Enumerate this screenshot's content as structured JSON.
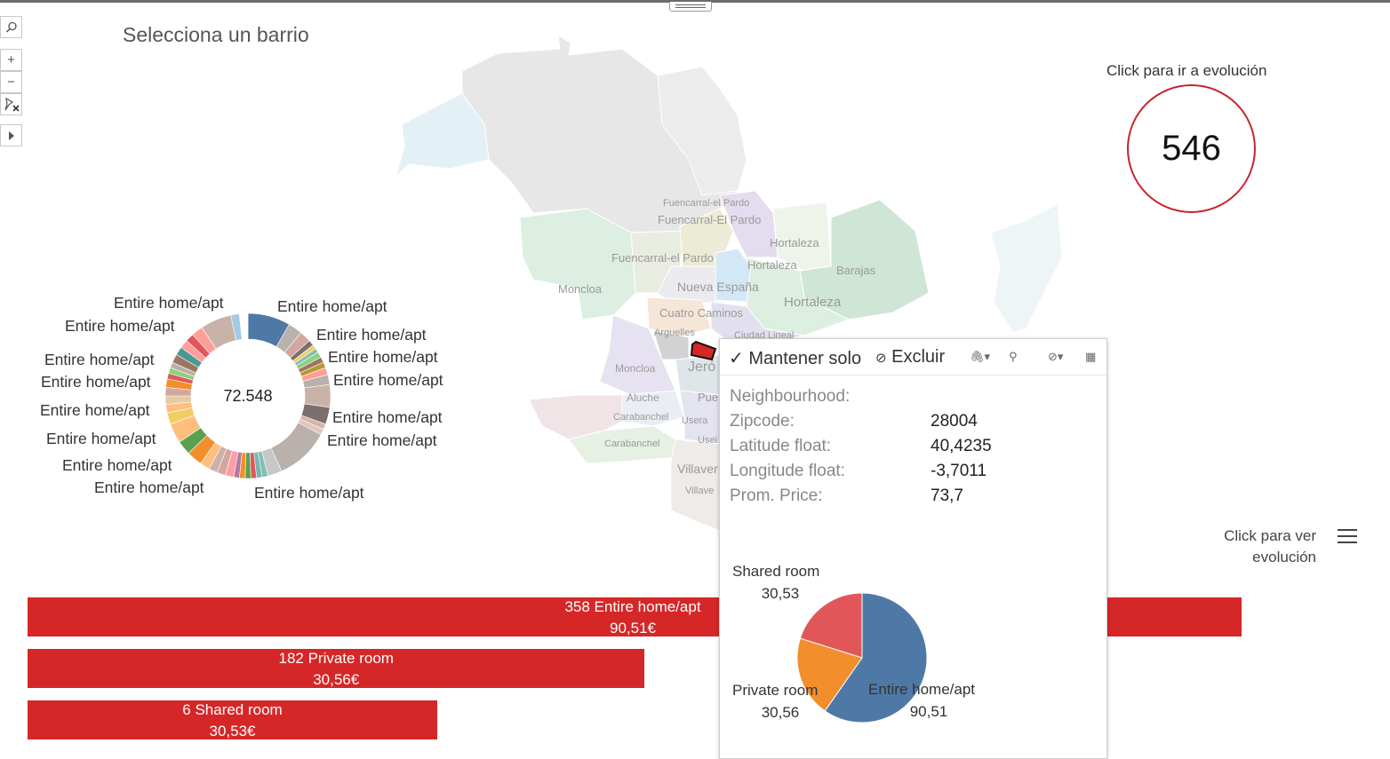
{
  "page": {
    "title": "Selecciona un barrio"
  },
  "toolbar": {
    "search_icon": "search-icon",
    "zoom_in_label": "+",
    "zoom_out_label": "−",
    "reset_icon": "pin-reset-icon",
    "expand_icon": "play-arrow-icon"
  },
  "kpi": {
    "caption": "Click para ir a evolución",
    "value": "546",
    "ring_color": "#c8232c"
  },
  "evolution_link": {
    "line1": "Click para ver",
    "line2": "evolución",
    "icon": "hamburger-menu-icon"
  },
  "map": {
    "labels": [
      "Fuencarral-el Pardo",
      "Fuencarral-El Pardo",
      "Hortaleza",
      "Fuencarral-el Pardo",
      "Hortaleza",
      "Barajas",
      "Moncloa",
      "Nueva España",
      "Hortaleza",
      "Cuatro Caminos",
      "Ciudad Lineal",
      "Arguelles",
      "Moncloa",
      "Jeró",
      "Pue",
      "Aluche",
      "Carabanchel",
      "Usera",
      "Carabanchel",
      "Usei",
      "Villaver",
      "Villave"
    ],
    "selected_color": "#d62728"
  },
  "donut": {
    "center_value": "72.548",
    "labels": [
      "Entire home/apt",
      "Entire home/apt",
      "Entire home/apt",
      "Entire home/apt",
      "Entire home/apt",
      "Entire home/apt",
      "Entire home/apt",
      "Entire home/apt",
      "Entire home/apt",
      "Entire home/apt",
      "Entire home/apt",
      "Entire home/apt",
      "Entire home/apt",
      "Entire home/apt",
      "Entire home/apt"
    ]
  },
  "bars": {
    "color": "#d62728",
    "items": [
      {
        "count_label": "358  Entire home/apt",
        "price_label": "90,51€",
        "value": 358
      },
      {
        "count_label": "182  Private room",
        "price_label": "30,56€",
        "value": 182
      },
      {
        "count_label": "6  Shared room",
        "price_label": "30,53€",
        "value": 6
      }
    ]
  },
  "tooltip": {
    "keep_label": "Mantener solo",
    "exclude_label": "Excluir",
    "fields": [
      {
        "key": "Neighbourhood:",
        "value": ""
      },
      {
        "key": "Zipcode:",
        "value": "28004"
      },
      {
        "key": "Latitude float:",
        "value": "40,4235"
      },
      {
        "key": "Longitude float:",
        "value": "-3,7011"
      },
      {
        "key": "Prom. Price:",
        "value": "73,7"
      }
    ]
  },
  "chart_data": {
    "type": "pie",
    "categories": [
      "Entire home/apt",
      "Private room",
      "Shared room"
    ],
    "values": [
      90.51,
      30.56,
      30.53
    ],
    "value_labels": [
      "90,51",
      "30,56",
      "30,53"
    ],
    "colors": [
      "#4e79a7",
      "#f28e2b",
      "#e15759"
    ]
  }
}
